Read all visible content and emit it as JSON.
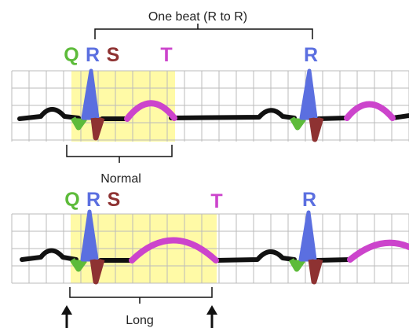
{
  "labels": {
    "one_beat": "One beat (R to R)",
    "normal": "Normal",
    "long": "Long",
    "q": "Q",
    "r": "R",
    "s": "S",
    "t": "T"
  },
  "colors": {
    "q": "#5dbb3a",
    "r": "#5b6fe0",
    "s": "#8e3232",
    "t": "#cc44cc",
    "baseline": "#111111",
    "highlight": "#fffaa6",
    "grid": "#bbbbbb",
    "bracket": "#111111"
  }
}
